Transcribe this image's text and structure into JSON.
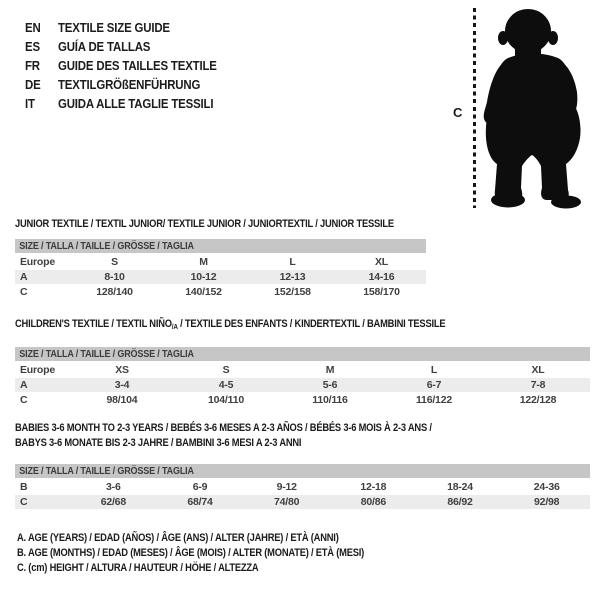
{
  "colors": {
    "size_bar": "#c6c6c6",
    "row_shade": "#ececec",
    "text": "#1c1c1c",
    "silhouette": "#0d0d0d"
  },
  "language_header": {
    "items": [
      {
        "code": "EN",
        "label": "TEXTILE SIZE GUIDE"
      },
      {
        "code": "ES",
        "label": "GUÍA DE TALLAS"
      },
      {
        "code": "FR",
        "label": "GUIDE DES TAILLES TEXTILE"
      },
      {
        "code": "DE",
        "label": "TEXTILGRÖßENFÜHRUNG"
      },
      {
        "code": "IT",
        "label": "GUIDA ALLE TAGLIE TESSILI"
      }
    ]
  },
  "figure": {
    "measure_label": "C",
    "image": "toddler-silhouette"
  },
  "sections": [
    {
      "title": "JUNIOR TEXTILE / TEXTIL JUNIOR/ TEXTILE JUNIOR / JUNIORTEXTIL / JUNIOR TESSILE",
      "size_header": "SIZE / TALLA / TAILLE / GRÖSSE / TAGLIA",
      "rows": [
        {
          "label": "Europe",
          "cells": [
            "S",
            "M",
            "L",
            "XL"
          ],
          "shaded": false
        },
        {
          "label": "A",
          "cells": [
            "8-10",
            "10-12",
            "12-13",
            "14-16"
          ],
          "shaded": true
        },
        {
          "label": "C",
          "cells": [
            "128/140",
            "140/152",
            "152/158",
            "158/170"
          ],
          "shaded": false
        }
      ]
    },
    {
      "title_pre": "CHILDREN'S TEXTILE / TEXTIL NIÑO",
      "title_sub": "/A",
      "title_post": " / TEXTILE DES ENFANTS / KINDERTEXTIL / BAMBINI TESSILE",
      "size_header": "SIZE / TALLA / TAILLE / GRÖSSE / TAGLIA",
      "rows": [
        {
          "label": "Europe",
          "cells": [
            "XS",
            "S",
            "M",
            "L",
            "XL"
          ],
          "shaded": false
        },
        {
          "label": "A",
          "cells": [
            "3-4",
            "4-5",
            "5-6",
            "6-7",
            "7-8"
          ],
          "shaded": true
        },
        {
          "label": "C",
          "cells": [
            "98/104",
            "104/110",
            "110/116",
            "116/122",
            "122/128"
          ],
          "shaded": false
        }
      ]
    },
    {
      "title_line1": "BABIES 3-6 MONTH TO 2-3 YEARS / BEBÉS 3-6 MESES A 2-3 AÑOS / BÉBÉS 3-6 MOIS À 2-3 ANS /",
      "title_line2": "BABYS 3-6 MONATE BIS 2-3 JAHRE / BAMBINI 3-6 MESI A 2-3 ANNI",
      "size_header": "SIZE / TALLA / TAILLE / GRÖSSE / TAGLIA",
      "rows": [
        {
          "label": "B",
          "cells": [
            "3-6",
            "6-9",
            "9-12",
            "12-18",
            "18-24",
            "24-36"
          ],
          "shaded": false
        },
        {
          "label": "C",
          "cells": [
            "62/68",
            "68/74",
            "74/80",
            "80/86",
            "86/92",
            "92/98"
          ],
          "shaded": true
        }
      ]
    }
  ],
  "footnotes": [
    "A. AGE (YEARS) / EDAD (AÑOS) / ÂGE (ANS) / ALTER (JAHRE) / ETÀ (ANNI)",
    "B. AGE (MONTHS) / EDAD (MESES) / ÂGE (MOIS) / ALTER (MONATE) / ETÀ (MESI)",
    "C. (cm) HEIGHT / ALTURA / HAUTEUR / HÖHE / ALTEZZA"
  ]
}
